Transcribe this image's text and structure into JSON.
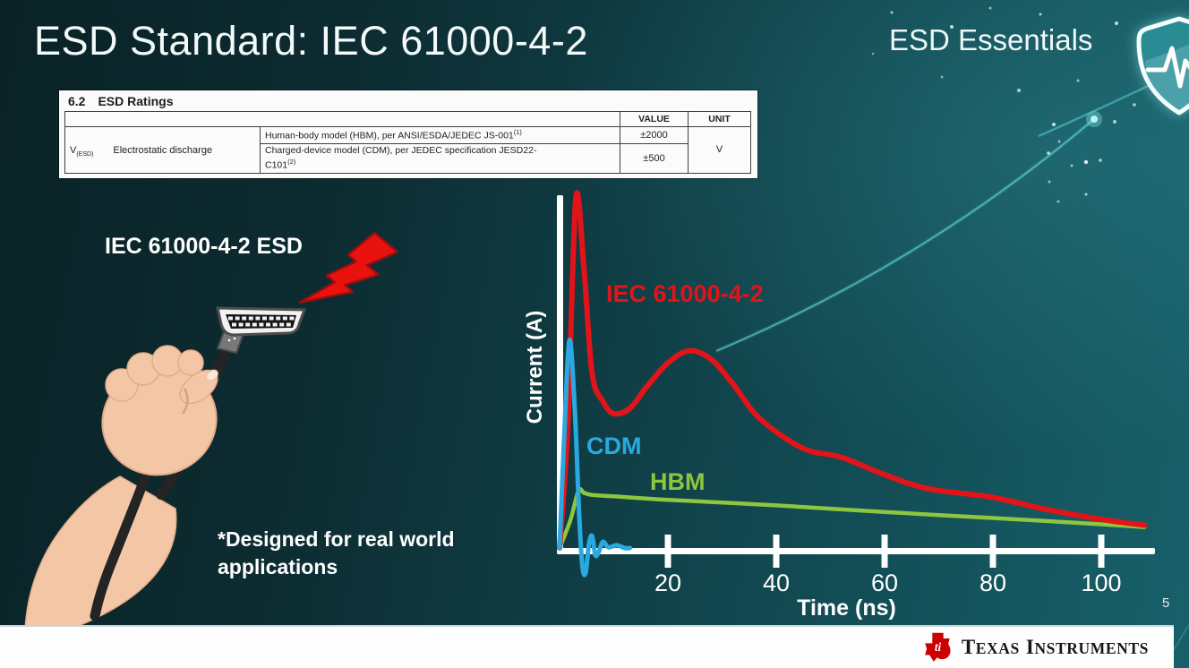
{
  "slide": {
    "title": "ESD Standard: IEC 61000-4-2",
    "series_brand": "ESD Essentials",
    "page_number": "5",
    "illustration_label": "IEC 61000-4-2 ESD",
    "footnote_lines": [
      "*Designed for real world",
      "applications"
    ]
  },
  "ratings_table": {
    "section_number": "6.2",
    "section_title": "ESD Ratings",
    "value_header": "VALUE",
    "unit_header": "UNIT",
    "symbol": "V",
    "symbol_subscript": "(ESD)",
    "parameter": "Electrostatic discharge",
    "rows": [
      {
        "description": "Human-body model (HBM), per ANSI/ESDA/JEDEC JS-001",
        "footnote_ref": "(1)",
        "value": "±2000"
      },
      {
        "description_line1": "Charged-device model (CDM), per JEDEC specification JESD22-",
        "description_line2": "C101",
        "footnote_ref": "(2)",
        "value": "±500"
      }
    ],
    "unit": "V"
  },
  "chart_data": {
    "type": "line",
    "title": "",
    "xlabel": "Time (ns)",
    "ylabel": "Current (A)",
    "x_ticks": [
      20,
      40,
      60,
      80,
      100
    ],
    "xlim": [
      0,
      110
    ],
    "ylim": [
      -0.1,
      1.05
    ],
    "y_units": "normalized, IEC 61000-4-2 first peak = 1.0",
    "grid": false,
    "legend_position": "inline labels beside curves",
    "series": [
      {
        "name": "IEC 61000-4-2",
        "color": "#e31419",
        "x": [
          0,
          1.5,
          3,
          4.5,
          6,
          8,
          10,
          13,
          16,
          20,
          24,
          28,
          32,
          37,
          45,
          52,
          60,
          68,
          80,
          90,
          100,
          108
        ],
        "y": [
          0,
          0.35,
          1.0,
          0.8,
          0.5,
          0.42,
          0.385,
          0.4,
          0.46,
          0.53,
          0.565,
          0.54,
          0.47,
          0.37,
          0.285,
          0.26,
          0.21,
          0.17,
          0.145,
          0.11,
          0.082,
          0.065
        ]
      },
      {
        "name": "CDM",
        "color": "#2aa9e0",
        "x": [
          0,
          0.8,
          1.8,
          2.8,
          3.6,
          4.2,
          4.8,
          5.4,
          6.0,
          6.6,
          7.2,
          8,
          9,
          10.5,
          12,
          13
        ],
        "y": [
          0,
          0.3,
          0.595,
          0.4,
          0.1,
          -0.05,
          -0.072,
          0.01,
          0.035,
          -0.02,
          -0.012,
          0.018,
          0.002,
          0.008,
          0,
          0
        ]
      },
      {
        "name": "HBM",
        "color": "#8dc63f",
        "x": [
          0,
          2,
          3.5,
          4.5,
          6,
          10,
          20,
          40,
          60,
          80,
          100,
          108
        ],
        "y": [
          0,
          0.08,
          0.164,
          0.158,
          0.152,
          0.148,
          0.138,
          0.122,
          0.103,
          0.086,
          0.068,
          0.06
        ]
      }
    ]
  },
  "footer": {
    "brand_parts": [
      "T",
      "exas",
      "I",
      "nstruments"
    ]
  },
  "icons": {
    "shield": "shield-pulse-icon",
    "bolt": "lightning-bolt-icon",
    "connector": "hdmi-connector-icon",
    "hand": "hand-holding-cable-illustration",
    "streak": "comet-streak-decor",
    "stars": "star-dots-decor",
    "ti_logo": "texas-instruments-logo-icon"
  },
  "colors": {
    "background_dark": "#0a2226",
    "background_light": "#17606a",
    "accent_red": "#e31419",
    "accent_blue": "#2aa9e0",
    "accent_green": "#8dc63f",
    "ti_red": "#cc0000",
    "text_white": "#ffffff"
  }
}
